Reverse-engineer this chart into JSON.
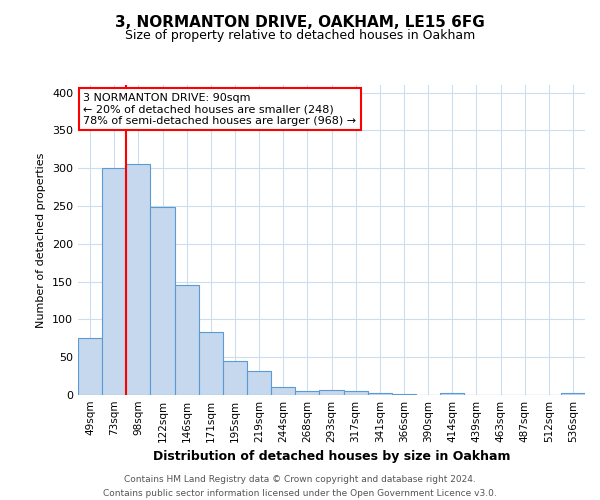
{
  "title": "3, NORMANTON DRIVE, OAKHAM, LE15 6FG",
  "subtitle": "Size of property relative to detached houses in Oakham",
  "xlabel": "Distribution of detached houses by size in Oakham",
  "ylabel": "Number of detached properties",
  "categories": [
    "49sqm",
    "73sqm",
    "98sqm",
    "122sqm",
    "146sqm",
    "171sqm",
    "195sqm",
    "219sqm",
    "244sqm",
    "268sqm",
    "293sqm",
    "317sqm",
    "341sqm",
    "366sqm",
    "390sqm",
    "414sqm",
    "439sqm",
    "463sqm",
    "487sqm",
    "512sqm",
    "536sqm"
  ],
  "values": [
    75,
    300,
    305,
    248,
    145,
    83,
    45,
    32,
    10,
    5,
    6,
    5,
    2,
    1,
    0,
    3,
    0,
    0,
    0,
    0,
    3
  ],
  "bar_color": "#c5d8ed",
  "bar_edge_color": "#5b9bd5",
  "red_line_x": 1.5,
  "annotation_line1": "3 NORMANTON DRIVE: 90sqm",
  "annotation_line2": "← 20% of detached houses are smaller (248)",
  "annotation_line3": "78% of semi-detached houses are larger (968) →",
  "annotation_box_color": "white",
  "annotation_box_edge": "red",
  "footer_text": "Contains HM Land Registry data © Crown copyright and database right 2024.\nContains public sector information licensed under the Open Government Licence v3.0.",
  "ylim": [
    0,
    410
  ],
  "yticks": [
    0,
    50,
    100,
    150,
    200,
    250,
    300,
    350,
    400
  ],
  "bg_color": "white",
  "grid_color": "#ccdded",
  "title_fontsize": 11,
  "subtitle_fontsize": 9,
  "xlabel_fontsize": 9,
  "ylabel_fontsize": 8,
  "tick_fontsize": 8,
  "xtick_fontsize": 7.5,
  "footer_fontsize": 6.5,
  "ann_fontsize": 8
}
